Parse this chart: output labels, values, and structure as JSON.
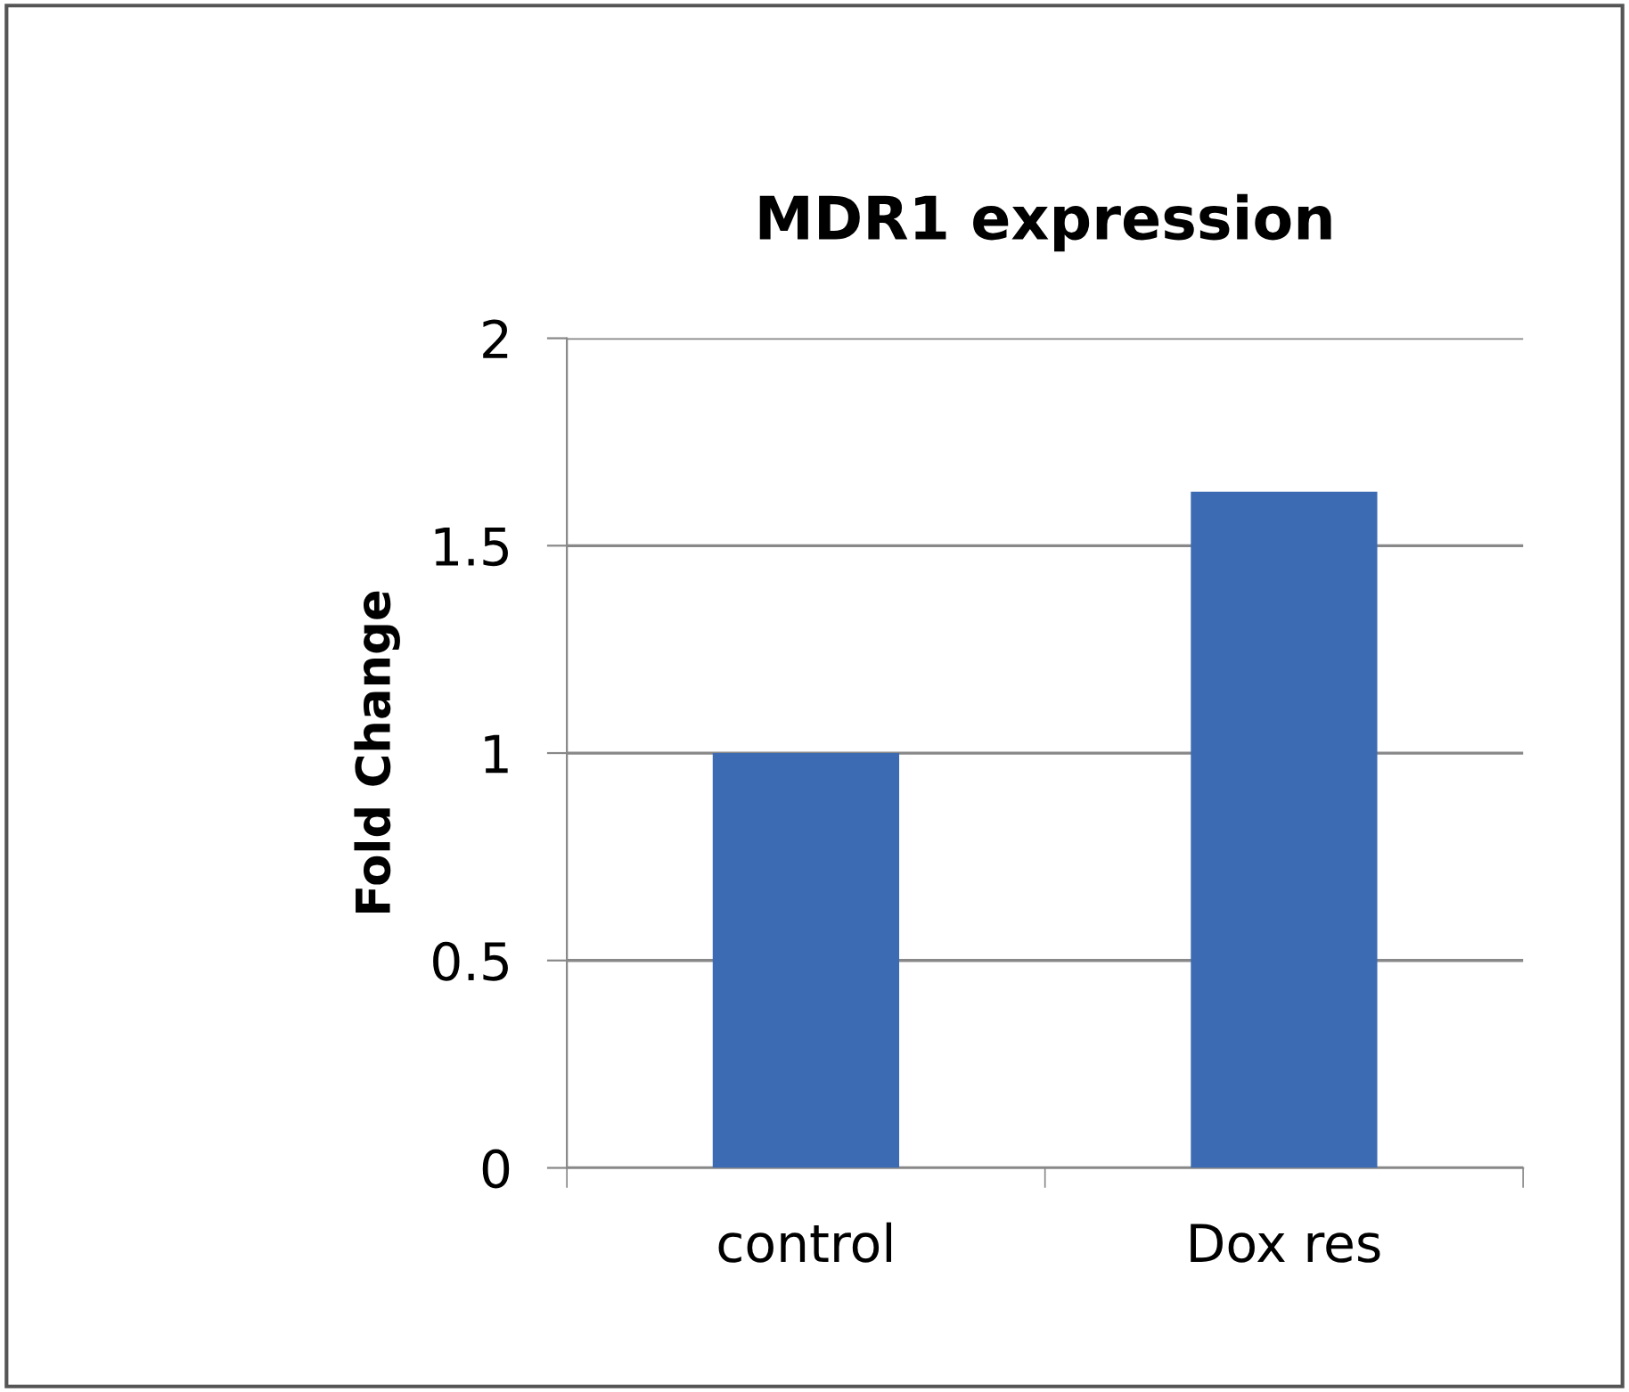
{
  "chart_data": {
    "type": "bar",
    "title": "MDR1 expression",
    "ylabel": "Fold Change",
    "categories": [
      "control",
      "Dox res"
    ],
    "values": [
      1.0,
      1.63
    ],
    "color": "#3d6bb3",
    "ylim": [
      0,
      2
    ],
    "yticks": [
      0,
      0.5,
      1,
      1.5,
      2
    ],
    "grid": "y"
  }
}
